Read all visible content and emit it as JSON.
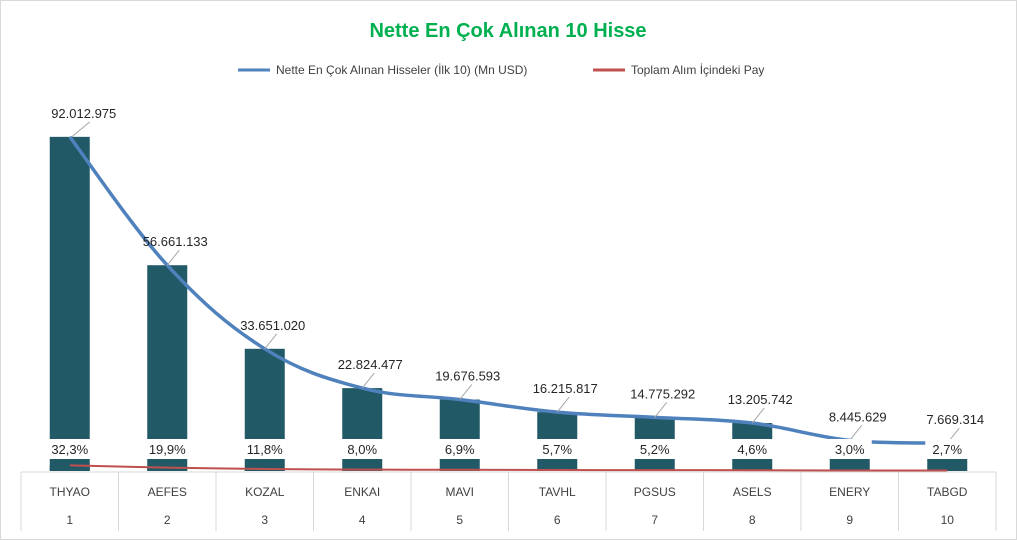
{
  "chart_data": {
    "type": "bar",
    "title": "Nette En Çok Alınan 10 Hisse",
    "title_color": "#00b050",
    "categories": [
      "THYAO",
      "AEFES",
      "KOZAL",
      "ENKAI",
      "MAVI",
      "TAVHL",
      "PGSUS",
      "ASELS",
      "ENERY",
      "TABGD"
    ],
    "indices": [
      "1",
      "2",
      "3",
      "4",
      "5",
      "6",
      "7",
      "8",
      "9",
      "10"
    ],
    "series": [
      {
        "name": "Nette En Çok Alınan Hisseler (İlk 10) (Mn USD)",
        "type": "bar+line",
        "bar_color": "#215967",
        "line_color": "#4f81bd",
        "values": [
          92012975,
          56661133,
          33651020,
          22824477,
          19676593,
          16215817,
          14775292,
          13205742,
          8445629,
          7669314
        ],
        "labels": [
          "92.012.975",
          "56.661.133",
          "33.651.020",
          "22.824.477",
          "19.676.593",
          "16.215.817",
          "14.775.292",
          "13.205.742",
          "8.445.629",
          "7.669.314"
        ]
      },
      {
        "name": "Toplam Alım İçindeki Pay",
        "type": "bar+line",
        "bar_color": "#215967",
        "line_color": "#c0504d",
        "values": [
          32.3,
          19.9,
          11.8,
          8.0,
          6.9,
          5.7,
          5.2,
          4.6,
          3.0,
          2.7
        ],
        "labels": [
          "32,3%",
          "19,9%",
          "11,8%",
          "8,0%",
          "6,9%",
          "5,7%",
          "5,2%",
          "4,6%",
          "3,0%",
          "2,7%"
        ]
      }
    ],
    "ylim": [
      0,
      95000000
    ],
    "ylim_pct": [
      0,
      2000
    ],
    "legend_position": "top",
    "grid": false
  }
}
